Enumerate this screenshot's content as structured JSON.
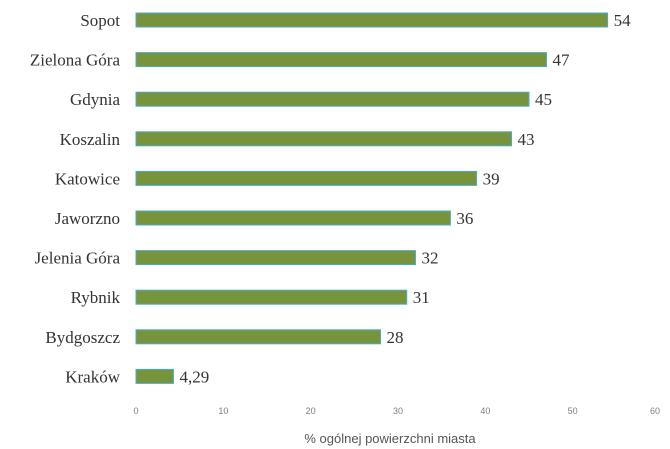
{
  "chart_data": {
    "type": "bar",
    "orientation": "horizontal",
    "title": "",
    "xlabel": "% ogólnej powierzchni miasta",
    "ylabel": "",
    "categories": [
      "Sopot",
      "Zielona Góra",
      "Gdynia",
      "Koszalin",
      "Katowice",
      "Jaworzno",
      "Jelenia Góra",
      "Rybnik",
      "Bydgoszcz",
      "Kraków"
    ],
    "values": [
      54,
      47,
      45,
      43,
      39,
      36,
      32,
      31,
      28,
      4.29
    ],
    "value_labels": [
      "54",
      "47",
      "45",
      "43",
      "39",
      "36",
      "32",
      "31",
      "28",
      "4,29"
    ],
    "xlim": [
      0,
      60
    ],
    "xticks": [
      0,
      10,
      20,
      30,
      40,
      50,
      60
    ],
    "grid": false,
    "legend": "none",
    "colors": {
      "bar_fill": "#77933c",
      "bar_stroke": "#4bacc6"
    }
  }
}
